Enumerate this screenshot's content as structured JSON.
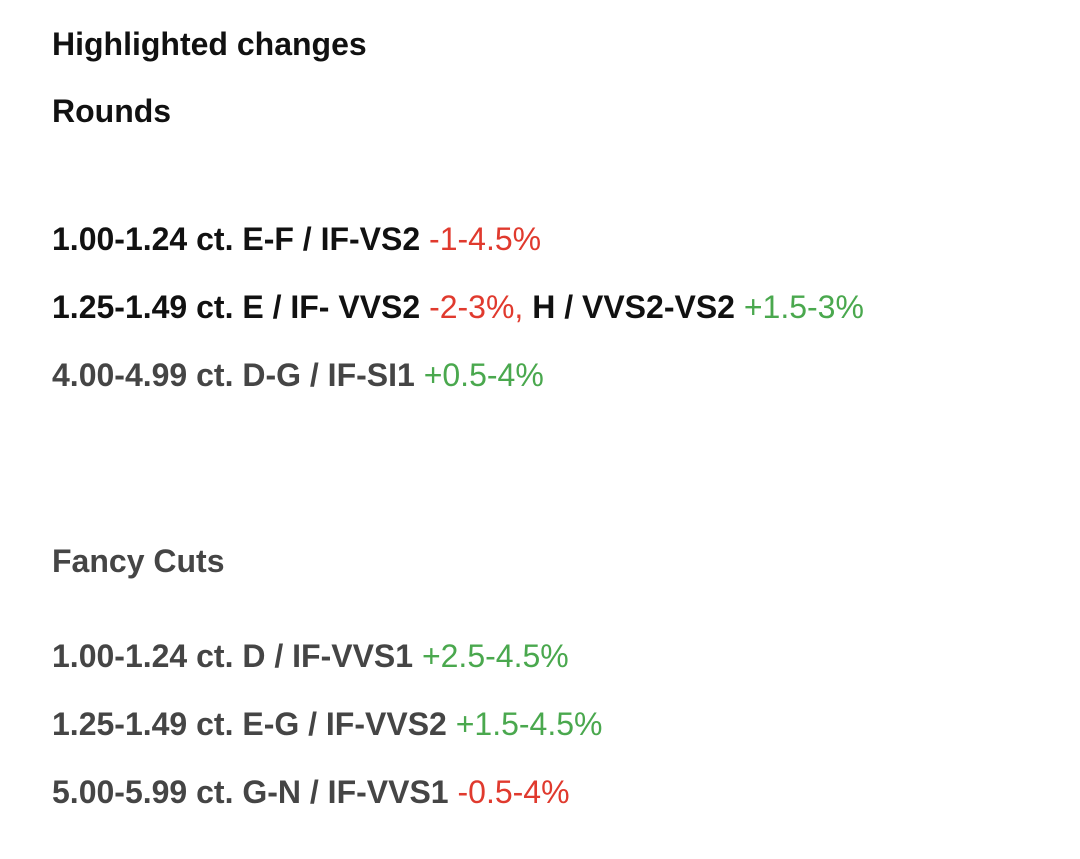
{
  "title": "Highlighted changes",
  "rounds": {
    "heading": "Rounds",
    "rows": [
      {
        "spec": "1.00-1.24 ct. E-F / IF-VS2",
        "change": "-1-4.5%"
      },
      {
        "spec": "1.25-1.49 ct. E / IF- VVS2",
        "change": "-2-3%,",
        "spec2": "H / VVS2-VS2",
        "change2": "+1.5-3%"
      },
      {
        "spec": "4.00-4.99 ct. D-G / IF-SI1",
        "change": "+0.5-4%"
      }
    ]
  },
  "fancy": {
    "heading": "Fancy Cuts",
    "rows": [
      {
        "spec": "1.00-1.24 ct. D / IF-VVS1",
        "change": "+2.5-4.5%"
      },
      {
        "spec": "1.25-1.49 ct. E-G / IF-VVS2",
        "change": "+1.5-4.5%"
      },
      {
        "spec": "5.00-5.99 ct. G-N / IF-VVS1",
        "change": "-0.5-4%"
      }
    ]
  },
  "colors": {
    "decrease": "#e03a2e",
    "increase": "#4aa84e",
    "text_dark": "#111111",
    "text_gray": "#454545"
  }
}
